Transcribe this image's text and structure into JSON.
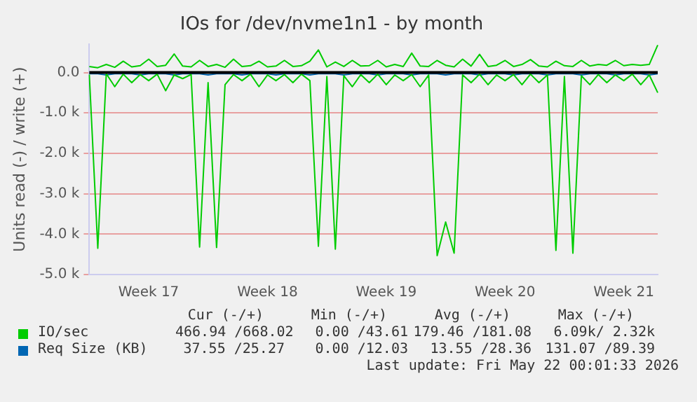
{
  "chart_data": {
    "type": "line",
    "title": "IOs for /dev/nvme1n1 - by month",
    "ylabel": "Units read (-) / write (+)",
    "categories": [
      null,
      null,
      null,
      null,
      null,
      null,
      null,
      "Week 17",
      null,
      null,
      null,
      null,
      null,
      null,
      null,
      null,
      null,
      null,
      null,
      null,
      null,
      "Week 18",
      null,
      null,
      null,
      null,
      null,
      null,
      null,
      null,
      null,
      null,
      null,
      null,
      null,
      "Week 19",
      null,
      null,
      null,
      null,
      null,
      null,
      null,
      null,
      null,
      null,
      null,
      null,
      null,
      "Week 20",
      null,
      null,
      null,
      null,
      null,
      null,
      null,
      null,
      null,
      null,
      null,
      null,
      null,
      "Week 21",
      null,
      null,
      null,
      null
    ],
    "ylim": [
      -5000,
      700
    ],
    "yticks": [
      {
        "value": 0,
        "label": "0.0"
      },
      {
        "value": -1000,
        "label": "-1.0 k"
      },
      {
        "value": -2000,
        "label": "-2.0 k"
      },
      {
        "value": -3000,
        "label": "-3.0 k"
      },
      {
        "value": -4000,
        "label": "-4.0 k"
      },
      {
        "value": -5000,
        "label": "-5.0 k"
      }
    ],
    "grid": "y",
    "legend": "bottom",
    "marker": "none",
    "line_style": "solid",
    "ref_lines": [
      {
        "axis": "y",
        "value": 0,
        "color": "#000000"
      }
    ],
    "series": [
      {
        "name": "IO/sec",
        "color": "#00cc00",
        "values": [
          150,
          120,
          200,
          130,
          280,
          140,
          170,
          330,
          150,
          180,
          460,
          160,
          140,
          300,
          150,
          200,
          130,
          330,
          150,
          170,
          280,
          140,
          160,
          300,
          150,
          170,
          280,
          560,
          140,
          260,
          150,
          300,
          160,
          170,
          300,
          140,
          200,
          150,
          480,
          160,
          150,
          300,
          180,
          140,
          330,
          160,
          450,
          150,
          180,
          300,
          150,
          200,
          320,
          160,
          140,
          280,
          170,
          150,
          300,
          160,
          200,
          180,
          300,
          170,
          200,
          180,
          200,
          680
        ]
      },
      {
        "color": "#00cc00",
        "values": [
          -50,
          -4350,
          -30,
          -350,
          -40,
          -250,
          -50,
          -200,
          -40,
          -450,
          -60,
          -150,
          -50,
          -4320,
          -250,
          -4330,
          -300,
          -50,
          -200,
          -40,
          -350,
          -60,
          -200,
          -50,
          -250,
          -40,
          -200,
          -4300,
          -100,
          -4370,
          -80,
          -350,
          -50,
          -250,
          -40,
          -300,
          -60,
          -200,
          -50,
          -350,
          -60,
          -4530,
          -3700,
          -4470,
          -60,
          -250,
          -40,
          -300,
          -60,
          -200,
          -50,
          -300,
          -40,
          -250,
          -60,
          -4400,
          -100,
          -4470,
          -80,
          -300,
          -50,
          -250,
          -60,
          -200,
          -40,
          -300,
          -60,
          -500
        ]
      },
      {
        "name": "Req Size (KB)",
        "color": "#0066b3",
        "values": [
          -30,
          -30,
          -60,
          -30,
          -30,
          -30,
          -60,
          -30,
          -30,
          -30,
          -60,
          -30,
          -30,
          -30,
          -60,
          -30,
          -30,
          -30,
          -60,
          -30,
          -30,
          -30,
          -60,
          -30,
          -30,
          -30,
          -60,
          -30,
          -30,
          -30,
          -60,
          -30,
          -30,
          -30,
          -60,
          -30,
          -30,
          -30,
          -60,
          -30,
          -30,
          -30,
          -60,
          -30,
          -30,
          -30,
          -60,
          -30,
          -30,
          -30,
          -60,
          -30,
          -30,
          -30,
          -60,
          -30,
          -30,
          -30,
          -60,
          -30,
          -30,
          -30,
          -60,
          -30,
          -30,
          -30,
          -60,
          -30
        ]
      }
    ],
    "annotations": [
      "Cur (-/+)",
      "Min (-/+)",
      "Avg (-/+)",
      "Max (-/+)",
      "466.94 /668.02",
      "0.00 /43.61",
      "179.46 /181.08",
      "6.09k/ 2.32k",
      "37.55 /25.27",
      "0.00 /12.03",
      "13.55 /28.36",
      "131.07 /89.39",
      "Last update: Fri May 22 00:01:33 2026"
    ]
  }
}
